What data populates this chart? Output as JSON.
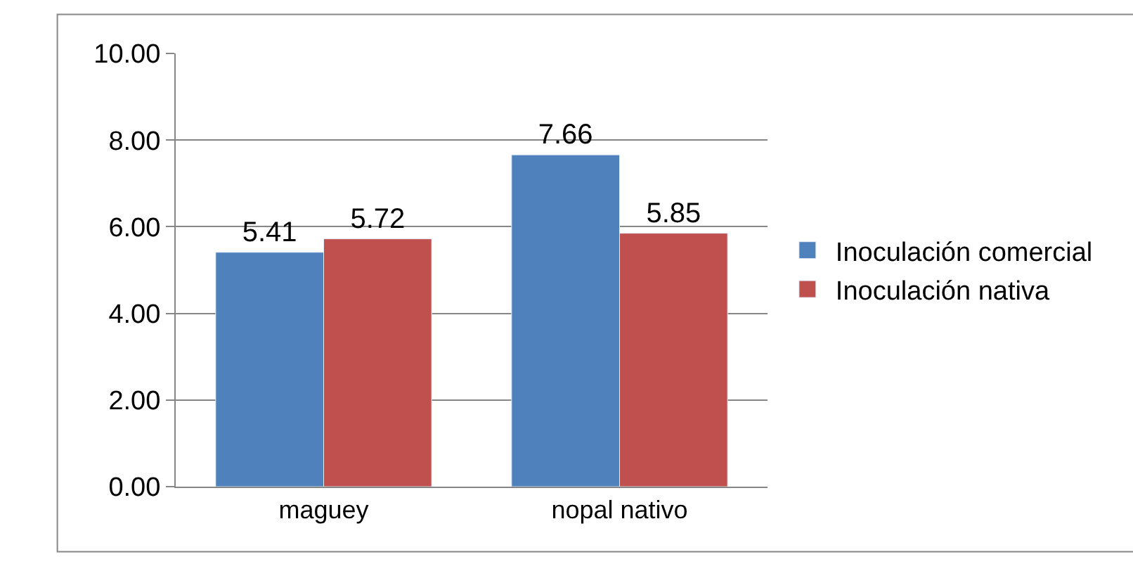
{
  "chart_data": {
    "type": "bar",
    "categories": [
      "maguey",
      "nopal nativo"
    ],
    "series": [
      {
        "name": "Inoculación comercial",
        "color": "#4f81bd",
        "values": [
          5.41,
          7.66
        ]
      },
      {
        "name": "Inoculación nativa",
        "color": "#c0504d",
        "values": [
          5.72,
          5.85
        ]
      }
    ],
    "ylim": [
      0,
      10
    ],
    "yticks": [
      {
        "value": 0,
        "label": "0.00"
      },
      {
        "value": 2,
        "label": "2.00"
      },
      {
        "value": 4,
        "label": "4.00"
      },
      {
        "value": 6,
        "label": "6.00"
      },
      {
        "value": 8,
        "label": "8.00"
      },
      {
        "value": 10,
        "label": "10.00"
      }
    ],
    "grid": "y",
    "legend": "right",
    "data_labels": true
  }
}
